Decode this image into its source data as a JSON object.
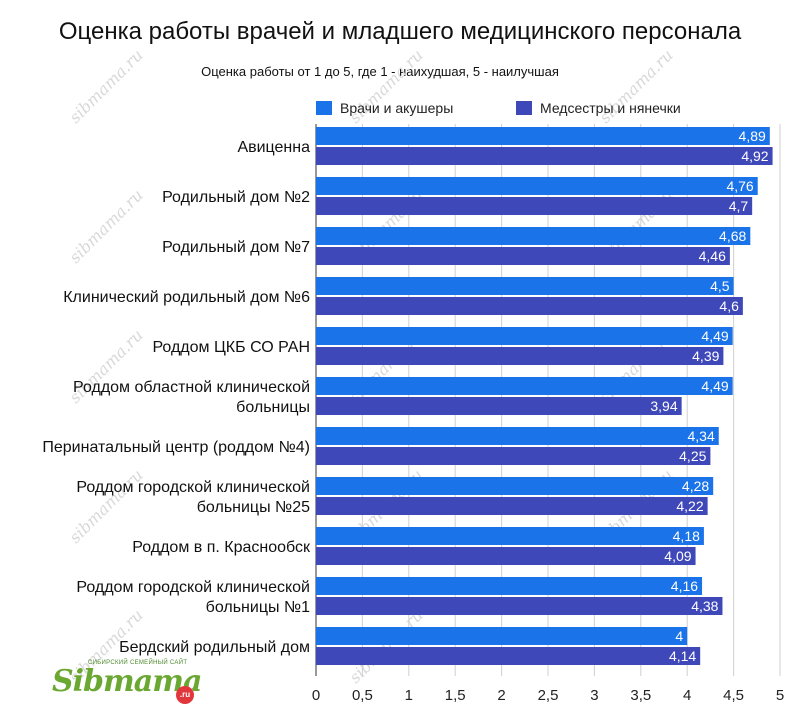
{
  "chart_data": {
    "type": "bar",
    "orientation": "horizontal",
    "title": "Оценка работы врачей и младшего медицинского персонала",
    "subtitle": "Оценка работы от 1 до 5, где 1 - наихудшая, 5 - наилучшая",
    "xlim": [
      0,
      5
    ],
    "x_ticks": [
      "0",
      "0,5",
      "1",
      "1,5",
      "2",
      "2,5",
      "3",
      "3,5",
      "4",
      "4,5",
      "5"
    ],
    "grid": true,
    "legend_position": "top",
    "categories": [
      [
        "Авиценна"
      ],
      [
        "Родильный дом №2"
      ],
      [
        "Родильный дом №7"
      ],
      [
        "Клинический родильный дом №6"
      ],
      [
        "Роддом ЦКБ СО РАН"
      ],
      [
        "Роддом областной клинической",
        "больницы"
      ],
      [
        "Перинатальный центр (роддом №4)"
      ],
      [
        "Роддом городской клинической",
        "больницы №25"
      ],
      [
        "Роддом в п. Краснообск"
      ],
      [
        "Роддом городской клинической",
        "больницы №1"
      ],
      [
        "Бердский родильный дом"
      ]
    ],
    "series": [
      {
        "name": "Врачи и акушеры",
        "color": "#1a73e8",
        "values": [
          4.89,
          4.76,
          4.68,
          4.5,
          4.49,
          4.49,
          4.34,
          4.28,
          4.18,
          4.16,
          4
        ],
        "labels": [
          "4,89",
          "4,76",
          "4,68",
          "4,5",
          "4,49",
          "4,49",
          "4,34",
          "4,28",
          "4,18",
          "4,16",
          "4"
        ]
      },
      {
        "name": "Медсестры и нянечки",
        "color": "#3f48b8",
        "values": [
          4.92,
          4.7,
          4.46,
          4.6,
          4.39,
          3.94,
          4.25,
          4.22,
          4.09,
          4.38,
          4.14
        ],
        "labels": [
          "4,92",
          "4,7",
          "4,46",
          "4,6",
          "4,39",
          "3,94",
          "4,25",
          "4,22",
          "4,09",
          "4,38",
          "4,14"
        ]
      }
    ]
  },
  "watermark": "sibmama.ru",
  "logo": {
    "tagline": "СИБИРСКИЙ СЕМЕЙНЫЙ САЙТ",
    "wordmark": "Sibmama",
    "suffix": ".ru"
  }
}
